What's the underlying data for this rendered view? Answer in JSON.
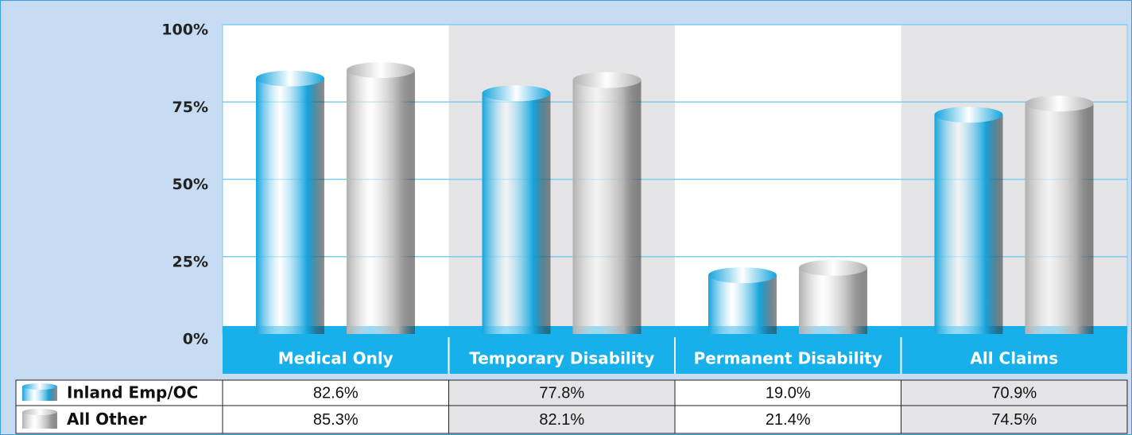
{
  "chart_data": {
    "type": "bar",
    "categories": [
      "Medical Only",
      "Temporary Disability",
      "Permanent Disability",
      "All Claims"
    ],
    "series": [
      {
        "name": "Inland Emp/OC",
        "color": "#15a4dd",
        "values": [
          82.6,
          77.8,
          19.0,
          70.9
        ],
        "value_labels": [
          "82.6%",
          "77.8%",
          "19.0%",
          "70.9%"
        ]
      },
      {
        "name": "All Other",
        "color": "#b0b0b0",
        "values": [
          85.3,
          82.1,
          21.4,
          74.5
        ],
        "value_labels": [
          "85.3%",
          "82.1%",
          "21.4%",
          "74.5%"
        ]
      }
    ],
    "ylim": [
      0,
      100
    ],
    "yticks": [
      {
        "value": 0,
        "label": "0%"
      },
      {
        "value": 25,
        "label": "25%"
      },
      {
        "value": 50,
        "label": "50%"
      },
      {
        "value": 75,
        "label": "75%"
      },
      {
        "value": 100,
        "label": "100%"
      }
    ],
    "grid": true
  }
}
